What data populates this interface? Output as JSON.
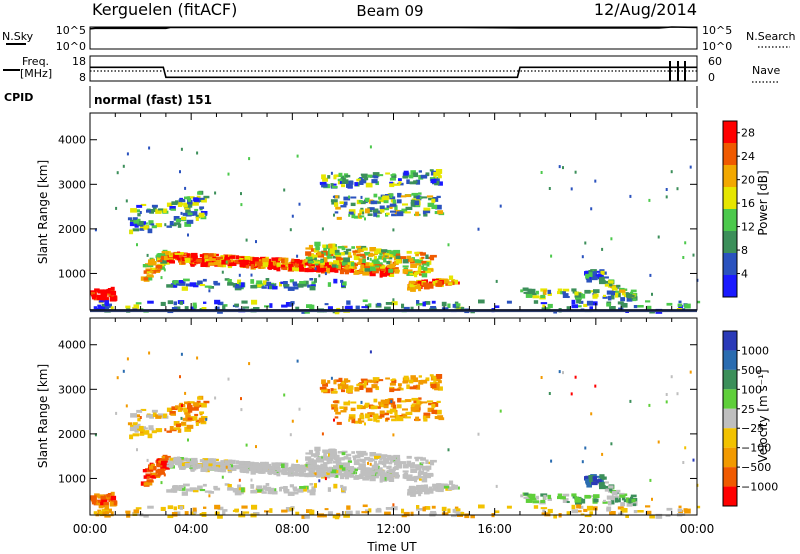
{
  "header": {
    "station": "Kerguelen (fitACF)",
    "beam": "Beam 09",
    "date": "12/Aug/2014"
  },
  "noise_panel": {
    "left_label": "N.Sky",
    "left_ticks": [
      "10^5",
      "10^0"
    ],
    "right_label": "N.Search",
    "right_ticks": [
      "10^5",
      "10^0"
    ]
  },
  "freq_panel": {
    "left_label_1": "Freq.",
    "left_label_2": "[MHz]",
    "left_ticks": [
      "18",
      "8"
    ],
    "right_label": "Nave",
    "right_ticks": [
      "60",
      "0"
    ]
  },
  "cpid": {
    "label": "CPID",
    "mode": "normal (fast) 151"
  },
  "x_axis": {
    "label": "Time UT",
    "ticks": [
      "00:00",
      "04:00",
      "08:00",
      "12:00",
      "16:00",
      "20:00",
      "00:00"
    ]
  },
  "colors": {
    "frame": "#000000",
    "power_scale": [
      "#1a1aff",
      "#2a52be",
      "#3c8f5a",
      "#4cc94c",
      "#e6e600",
      "#f2a800",
      "#f05a00",
      "#ff0000"
    ],
    "velocity_scale": [
      "#2a3ab8",
      "#2a6cb0",
      "#3c8f5a",
      "#5fcf3a",
      "#bfbfbf",
      "#f2c200",
      "#f29a00",
      "#f05a00",
      "#ff0000"
    ]
  },
  "chart_data": [
    {
      "type": "line",
      "panel": "noise",
      "xlim": [
        0,
        24
      ],
      "x": [
        0,
        0.2,
        3,
        3.2,
        6,
        10,
        14.5,
        17,
        18,
        20,
        22.5,
        23,
        24
      ],
      "series": [
        {
          "values": [
            4.6,
            4.7,
            4.7,
            4.9,
            4.9,
            4.9,
            4.9,
            4.8,
            4.8,
            4.8,
            4.8,
            5.0,
            4.9
          ]
        }
      ]
    },
    {
      "type": "line",
      "panel": "frequency",
      "xlim": [
        0,
        24
      ],
      "ylim": [
        8,
        18
      ],
      "x": [
        0,
        2.9,
        3.0,
        16.9,
        17.0,
        24
      ],
      "series": [
        {
          "values": [
            13.5,
            13.5,
            9.5,
            9.5,
            13.5,
            13.5
          ]
        },
        {
          "values": [
            12,
            12,
            12,
            12,
            12,
            12
          ]
        }
      ]
    },
    {
      "type": "heatmap",
      "panel": "power",
      "title": "Power [dB]",
      "xlabel": "Time UT",
      "ylabel": "Slant Range [km]",
      "xlim": [
        0,
        24
      ],
      "ylim": [
        180,
        4600
      ],
      "yticks": [
        1000,
        2000,
        3000,
        4000
      ],
      "colorbar_ticks": [
        4,
        8,
        12,
        16,
        20,
        24,
        28
      ],
      "colorbar_range": [
        0,
        30
      ]
    },
    {
      "type": "heatmap",
      "panel": "velocity",
      "title": "Velocity [m s⁻¹]",
      "xlabel": "Time UT",
      "ylabel": "Slant Range [km]",
      "xlim": [
        0,
        24
      ],
      "ylim": [
        180,
        4600
      ],
      "yticks": [
        1000,
        2000,
        3000,
        4000
      ],
      "colorbar_ticks": [
        "1000",
        "500",
        "100",
        "25",
        "−25",
        "−100",
        "−500",
        "−1000"
      ]
    }
  ]
}
